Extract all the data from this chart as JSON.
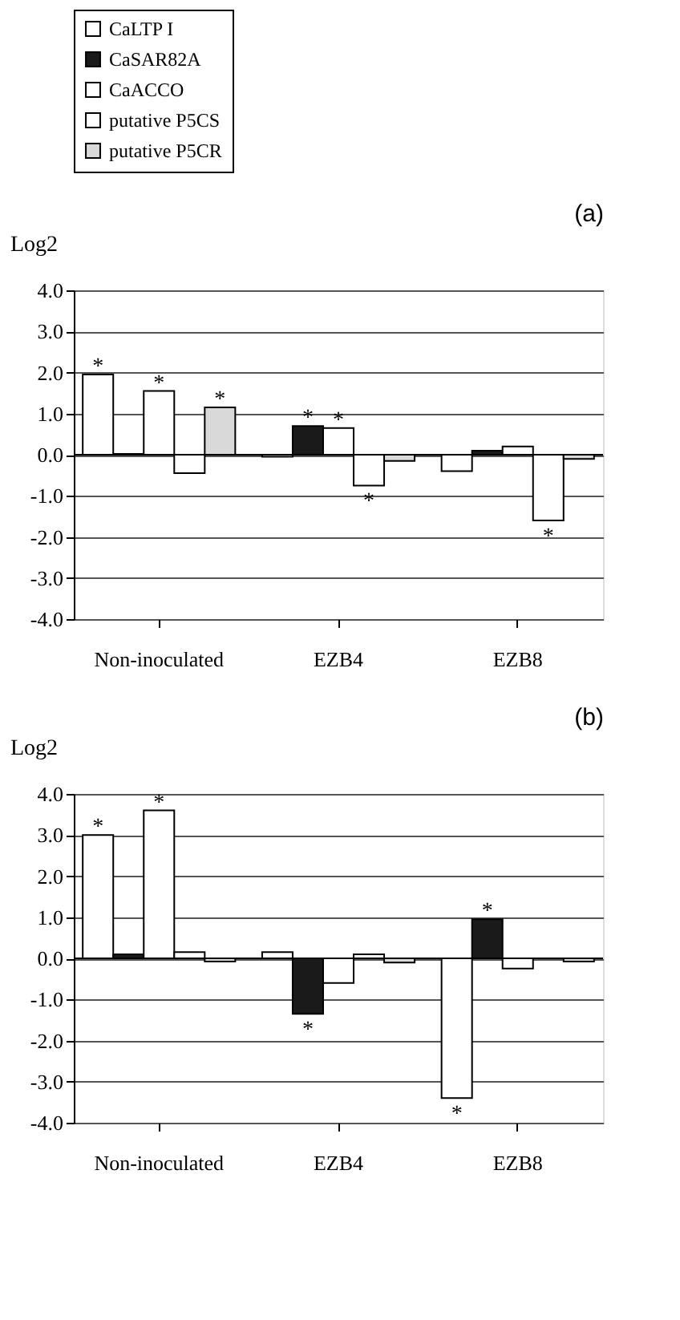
{
  "chart_data": [
    {
      "type": "bar",
      "title": "(a)",
      "ylabel": "Log2",
      "categories": [
        "Non-inoculated",
        "EZB4",
        "EZB8"
      ],
      "series": [
        {
          "name": "CaLTP I",
          "color": "#ffffff",
          "values": [
            1.95,
            -0.05,
            -0.4
          ],
          "value_labels": [
            "*",
            null,
            null
          ]
        },
        {
          "name": "CaSAR82A",
          "color": "#1a1a1a",
          "values": [
            0.02,
            0.7,
            0.1
          ],
          "value_labels": [
            null,
            "*",
            null
          ]
        },
        {
          "name": "CaACCO",
          "color": "#ffffff",
          "values": [
            1.55,
            0.65,
            0.2
          ],
          "value_labels": [
            "*",
            "*",
            null
          ]
        },
        {
          "name": "putative P5CS",
          "color": "#ffffff",
          "values": [
            -0.45,
            -0.75,
            -1.6
          ],
          "value_labels": [
            null,
            "*",
            "*"
          ]
        },
        {
          "name": "putative P5CR",
          "color": "#d9d9d9",
          "values": [
            1.15,
            -0.15,
            -0.1
          ],
          "value_labels": [
            "*",
            null,
            null
          ]
        }
      ],
      "ylim": [
        -4,
        4
      ],
      "yticks": [
        {
          "value": 4,
          "label": "4.0"
        },
        {
          "value": 3,
          "label": "3.0"
        },
        {
          "value": 2,
          "label": "2.0"
        },
        {
          "value": 1,
          "label": "1.0"
        },
        {
          "value": 0,
          "label": "0.0"
        },
        {
          "value": -1,
          "label": "-1.0"
        },
        {
          "value": -2,
          "label": "-2.0"
        },
        {
          "value": -3,
          "label": "-3.0"
        },
        {
          "value": -4,
          "label": "-4.0"
        }
      ],
      "grid": "y",
      "legend": "top"
    },
    {
      "type": "bar",
      "title": "(b)",
      "ylabel": "Log2",
      "categories": [
        "Non-inoculated",
        "EZB4",
        "EZB8"
      ],
      "series": [
        {
          "name": "CaLTP I",
          "color": "#ffffff",
          "values": [
            3.0,
            0.15,
            -3.4
          ],
          "value_labels": [
            "*",
            null,
            "*"
          ]
        },
        {
          "name": "CaSAR82A",
          "color": "#1a1a1a",
          "values": [
            0.1,
            -1.35,
            0.95
          ],
          "value_labels": [
            null,
            "*",
            "*"
          ]
        },
        {
          "name": "CaACCO",
          "color": "#ffffff",
          "values": [
            3.6,
            -0.6,
            -0.25
          ],
          "value_labels": [
            "*",
            null,
            null
          ]
        },
        {
          "name": "putative P5CS",
          "color": "#ffffff",
          "values": [
            0.15,
            0.1,
            null
          ]
        },
        {
          "name": "putative P5CR",
          "color": "#d9d9d9",
          "values": [
            -0.08,
            -0.1,
            -0.08
          ]
        }
      ],
      "ylim": [
        -4,
        4
      ],
      "yticks": [
        {
          "value": 4,
          "label": "4.0"
        },
        {
          "value": 3,
          "label": "3.0"
        },
        {
          "value": 2,
          "label": "2.0"
        },
        {
          "value": 1,
          "label": "1.0"
        },
        {
          "value": 0,
          "label": "0.0"
        },
        {
          "value": -1,
          "label": "-1.0"
        },
        {
          "value": -2,
          "label": "-2.0"
        },
        {
          "value": -3,
          "label": "-3.0"
        },
        {
          "value": -4,
          "label": "-4.0"
        }
      ],
      "grid": "y",
      "legend": false
    }
  ]
}
